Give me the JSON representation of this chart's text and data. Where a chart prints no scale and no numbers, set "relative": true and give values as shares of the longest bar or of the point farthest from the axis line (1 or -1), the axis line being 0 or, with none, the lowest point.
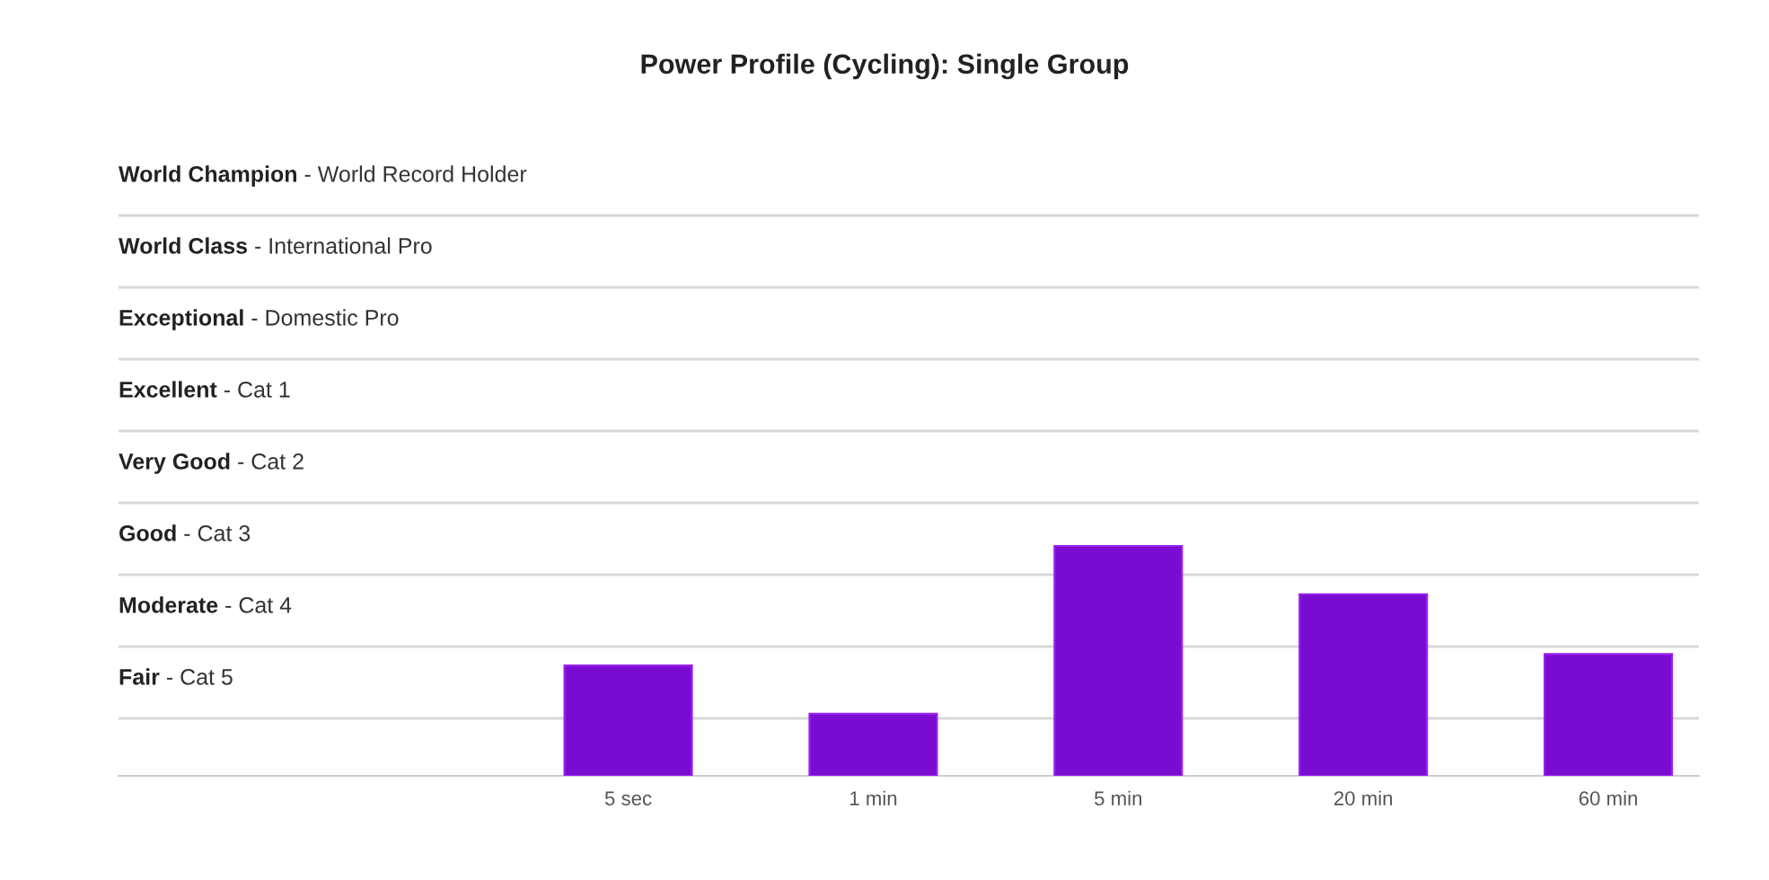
{
  "chart_data": {
    "type": "bar",
    "title": "Power Profile (Cycling): Single Group",
    "relative": true,
    "categories": [
      "5 sec",
      "1 min",
      "5 min",
      "20 min",
      "60 min"
    ],
    "values": [
      0.48,
      0.27,
      1,
      0.79,
      0.53
    ],
    "color": "#7a0bd0",
    "annotations": [
      "World Champion - World Record Holder",
      "World Class - International Pro",
      "Exceptional - Domestic Pro",
      "Excellent - Cat 1",
      "Very Good - Cat 2",
      "Good - Cat 3",
      "Moderate - Cat 4",
      "Fair - Cat 5"
    ]
  }
}
